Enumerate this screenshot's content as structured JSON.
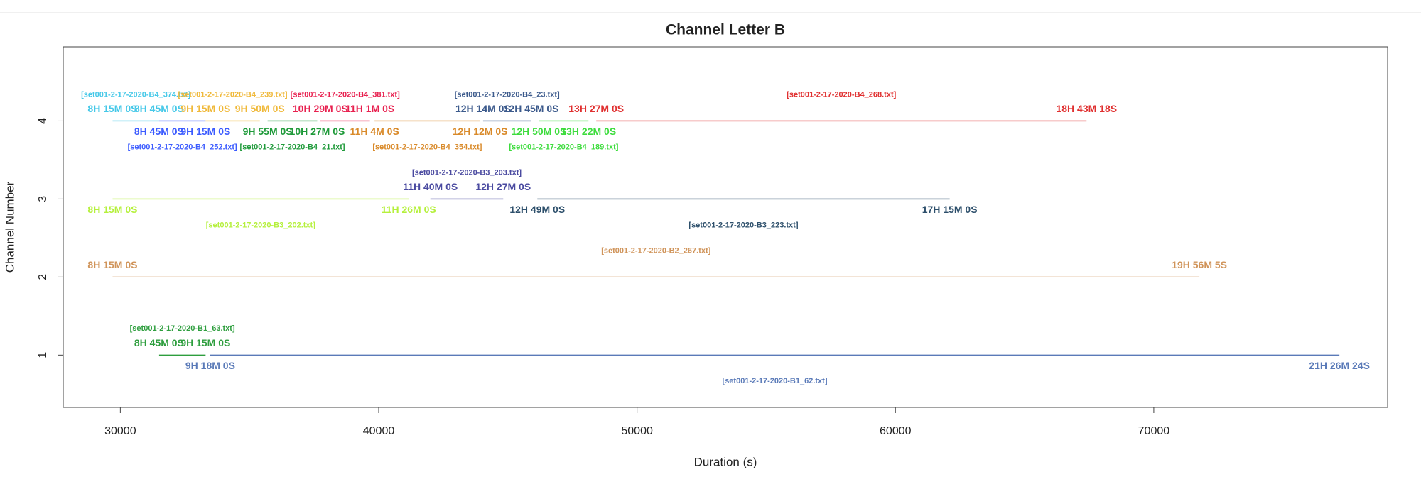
{
  "chart_data": {
    "type": "segment",
    "title": "Channel Letter B",
    "x_label": "Duration (s)",
    "y_label": "Channel Number",
    "xlim": [
      27790,
      79050
    ],
    "ylim": [
      0.33,
      4.95
    ],
    "xticks": [
      30000,
      40000,
      50000,
      60000,
      70000
    ],
    "yticks": [
      1,
      2,
      3,
      4
    ],
    "segments": [
      {
        "channel": 4,
        "start": 29700,
        "end": 31500,
        "start_label": "8H 15M 0S",
        "end_label": "8H 45M 0S",
        "file": "[set001-2-17-2020-B4_374.txt]",
        "color": "#45c8e8",
        "side": "above"
      },
      {
        "channel": 4,
        "start": 31500,
        "end": 33300,
        "start_label": "8H 45M 0S",
        "end_label": "9H 15M 0S",
        "file": "[set001-2-17-2020-B4_252.txt]",
        "color": "#3b5bff",
        "side": "below"
      },
      {
        "channel": 4,
        "start": 33300,
        "end": 35400,
        "start_label": "9H 15M 0S",
        "end_label": "9H 50M 0S",
        "file": "[set001-2-17-2020-B4_239.txt]",
        "color": "#f0b93a",
        "side": "above"
      },
      {
        "channel": 4,
        "start": 35700,
        "end": 37620,
        "start_label": "9H 55M 0S",
        "end_label": "10H 27M 0S",
        "file": "[set001-2-17-2020-B4_21.txt]",
        "color": "#1f9a3a",
        "side": "below"
      },
      {
        "channel": 4,
        "start": 37740,
        "end": 39660,
        "start_label": "10H 29M 0S",
        "end_label": "11H 1M 0S",
        "file": "[set001-2-17-2020-B4_381.txt]",
        "color": "#e8204f",
        "side": "above"
      },
      {
        "channel": 4,
        "start": 39840,
        "end": 43920,
        "start_label": "11H 4M 0S",
        "end_label": "12H 12M 0S",
        "file": "[set001-2-17-2020-B4_354.txt]",
        "color": "#d98a2a",
        "side": "below"
      },
      {
        "channel": 4,
        "start": 44040,
        "end": 45900,
        "start_label": "12H 14M 0S",
        "end_label": "12H 45M 0S",
        "file": "[set001-2-17-2020-B4_23.txt]",
        "color": "#3c5a8c",
        "side": "above"
      },
      {
        "channel": 4,
        "start": 46200,
        "end": 48120,
        "start_label": "12H 50M 0S",
        "end_label": "13H 22M 0S",
        "file": "[set001-2-17-2020-B4_189.txt]",
        "color": "#3ddc3d",
        "side": "below"
      },
      {
        "channel": 4,
        "start": 48420,
        "end": 67398,
        "start_label": "13H 27M 0S",
        "end_label": "18H 43M 18S",
        "file": "[set001-2-17-2020-B4_268.txt]",
        "color": "#e03030",
        "side": "above"
      },
      {
        "channel": 3,
        "start": 29700,
        "end": 41160,
        "start_label": "8H 15M 0S",
        "end_label": "11H 26M 0S",
        "file": "[set001-2-17-2020-B3_202.txt]",
        "color": "#b5f03c",
        "side": "below"
      },
      {
        "channel": 3,
        "start": 42000,
        "end": 44820,
        "start_label": "11H 40M 0S",
        "end_label": "12H 27M 0S",
        "file": "[set001-2-17-2020-B3_203.txt]",
        "color": "#4a4aa0",
        "side": "above"
      },
      {
        "channel": 3,
        "start": 46140,
        "end": 62100,
        "start_label": "12H 49M 0S",
        "end_label": "17H 15M 0S",
        "file": "[set001-2-17-2020-B3_223.txt]",
        "color": "#2d4f6b",
        "side": "below"
      },
      {
        "channel": 2,
        "start": 29700,
        "end": 71765,
        "start_label": "8H 15M 0S",
        "end_label": "19H 56M 5S",
        "file": "[set001-2-17-2020-B2_267.txt]",
        "color": "#d0945a",
        "side": "above"
      },
      {
        "channel": 1,
        "start": 31500,
        "end": 33300,
        "start_label": "8H 45M 0S",
        "end_label": "9H 15M 0S",
        "file": "[set001-2-17-2020-B1_63.txt]",
        "color": "#2e9e3e",
        "side": "above"
      },
      {
        "channel": 1,
        "start": 33480,
        "end": 77184,
        "start_label": "9H 18M 0S",
        "end_label": "21H 26M 24S",
        "file": "[set001-2-17-2020-B1_62.txt]",
        "color": "#5a7ab8",
        "side": "below"
      }
    ]
  }
}
